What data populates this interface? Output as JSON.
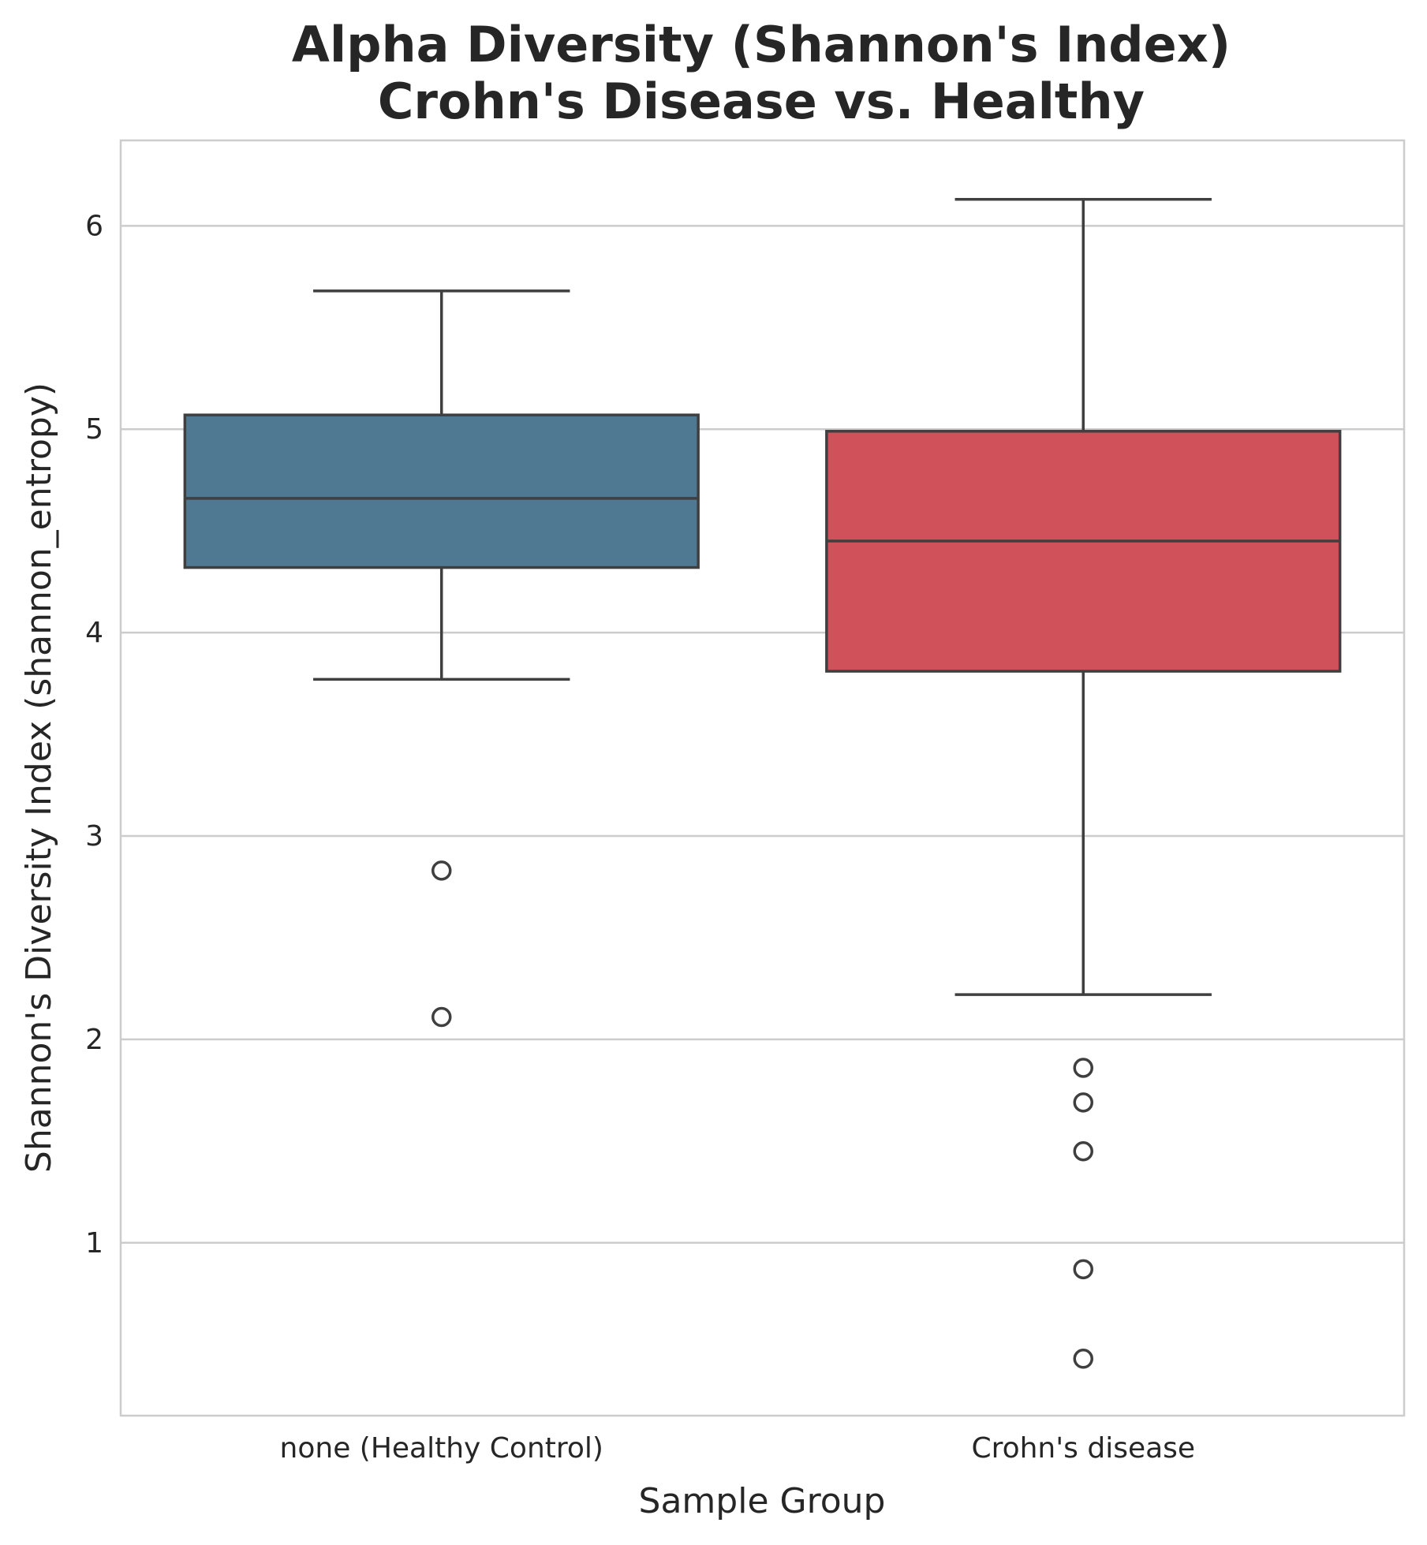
{
  "chart_data": {
    "type": "box",
    "title_lines": [
      "Alpha Diversity (Shannon's Index)",
      "Crohn's Disease vs. Healthy"
    ],
    "xlabel": "Sample Group",
    "ylabel": "Shannon's Diversity Index (shannon_entropy)",
    "ylim": [
      0.15,
      6.42
    ],
    "yticks": [
      1,
      2,
      3,
      4,
      5,
      6
    ],
    "grid": true,
    "groups": [
      {
        "label": "none (Healthy Control)",
        "color": "#4f7892",
        "whisker_low": 3.77,
        "q1": 4.32,
        "median": 4.66,
        "q3": 5.07,
        "whisker_high": 5.68,
        "outliers": [
          2.83,
          2.11
        ]
      },
      {
        "label": "Crohn's disease",
        "color": "#d1515b",
        "whisker_low": 2.22,
        "q1": 3.81,
        "median": 4.45,
        "q3": 4.99,
        "whisker_high": 6.13,
        "outliers": [
          1.86,
          1.69,
          1.45,
          0.87,
          0.43
        ]
      }
    ]
  },
  "colors": {
    "grid": "#cccccc",
    "frame": "#cccccc",
    "box_edge": "#3f3f3f",
    "text": "#262626"
  }
}
